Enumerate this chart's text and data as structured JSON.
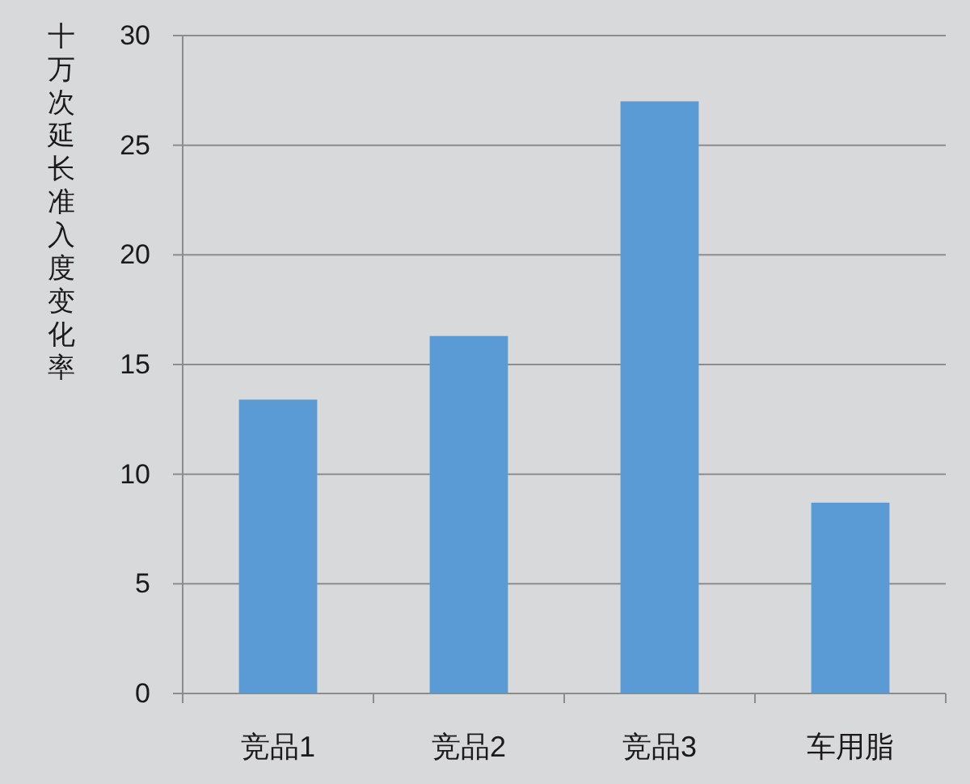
{
  "chart_data": {
    "type": "bar",
    "ylabel": "十万次延长准入度变化率",
    "categories": [
      "竞品1",
      "竞品2",
      "竞品3",
      "车用脂"
    ],
    "values": [
      13.4,
      16.3,
      27.0,
      8.7
    ],
    "color": "#5b9bd5",
    "ylim": [
      0,
      30
    ],
    "yticks": [
      0,
      5,
      10,
      15,
      20,
      25,
      30
    ],
    "grid": "y"
  }
}
